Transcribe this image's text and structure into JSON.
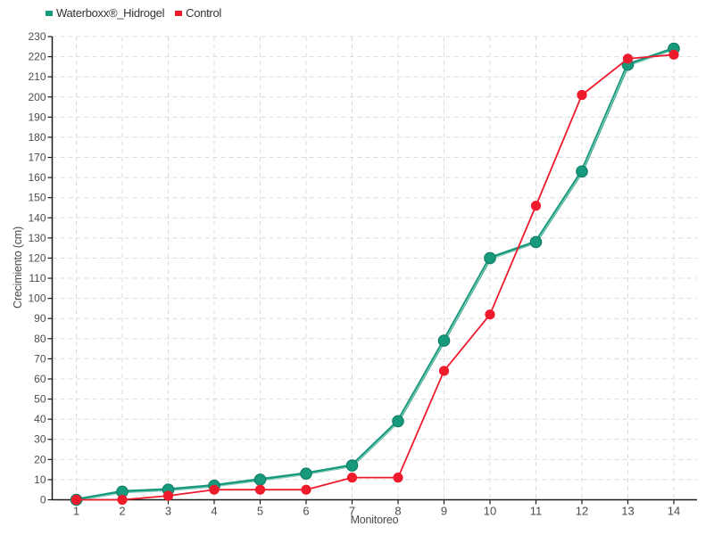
{
  "chart_data": {
    "type": "line",
    "x": [
      1,
      2,
      3,
      4,
      5,
      6,
      7,
      8,
      9,
      10,
      11,
      12,
      13,
      14
    ],
    "xlabel": "Monitoreo",
    "ylabel": "Crecimiento (cm)",
    "ylim": [
      0,
      230
    ],
    "ytick_step": 10,
    "grid": "dashed-gray-horizontal-and-vertical",
    "legend_position": "top-left",
    "series": [
      {
        "name": "Waterboxx®_Hidrogel",
        "color": "#17997C",
        "marker": "circle",
        "values": [
          0,
          4,
          5,
          7,
          10,
          13,
          17,
          39,
          79,
          120,
          128,
          163,
          216,
          224
        ]
      },
      {
        "name": "Control",
        "color": "#EE1B2C",
        "marker": "circle",
        "values": [
          0,
          0,
          2,
          5,
          5,
          5,
          11,
          11,
          64,
          92,
          146,
          201,
          219,
          221
        ]
      }
    ]
  }
}
